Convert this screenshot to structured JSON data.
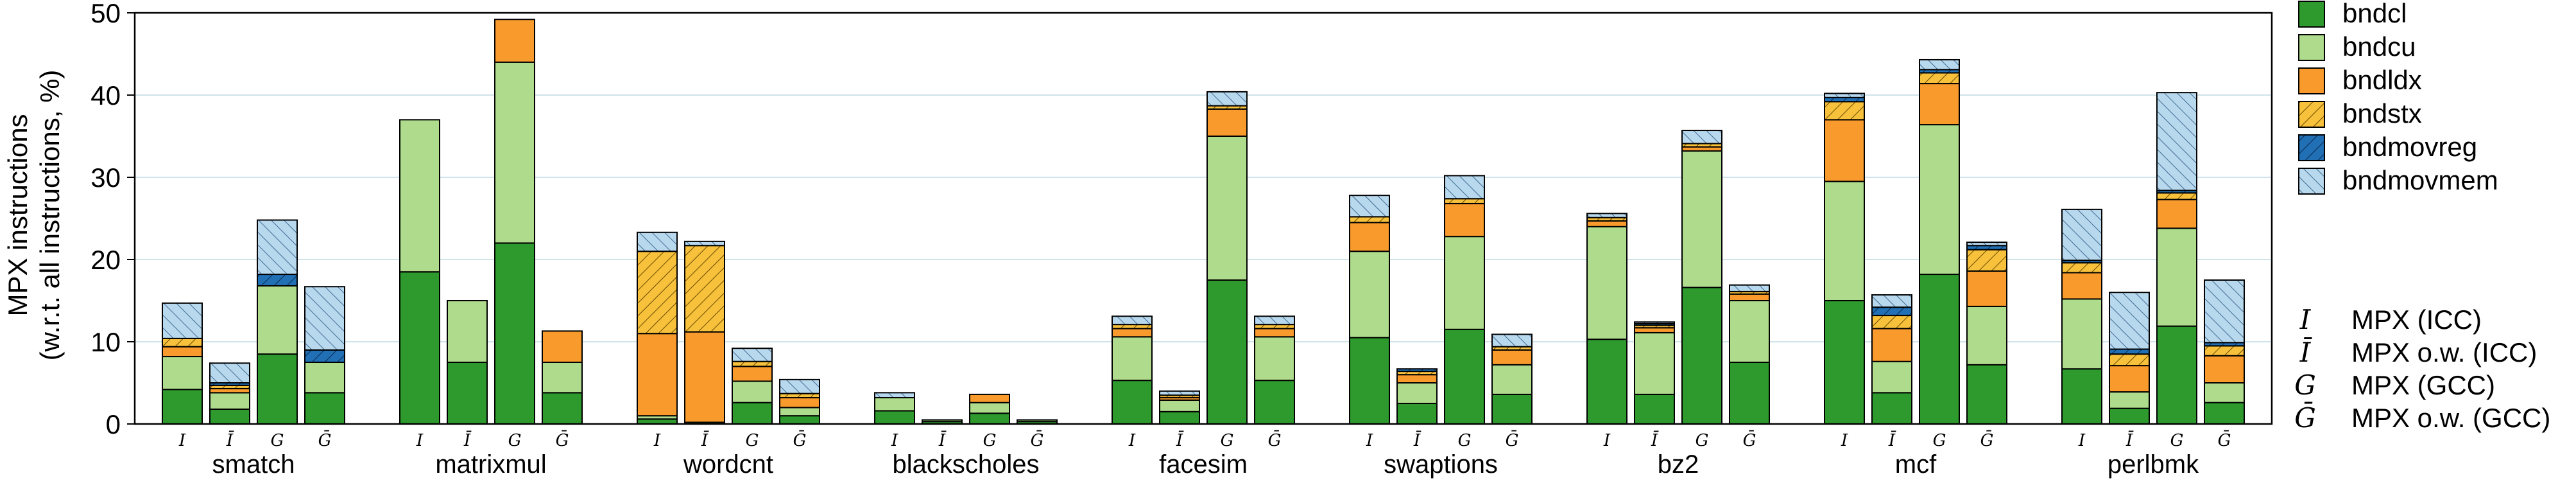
{
  "chart_data": {
    "type": "bar",
    "stacked": true,
    "ylabel_line1": "MPX instructions",
    "ylabel_line2": "(w.r.t. all instructions, %)",
    "ylim": [
      0,
      50
    ],
    "yticks": [
      "0",
      "10",
      "20",
      "30",
      "40",
      "50"
    ],
    "grid": "horizontal",
    "bar_labels": [
      "I",
      "Ī",
      "G",
      "Ḡ"
    ],
    "categories": [
      "smatch",
      "matrixmul",
      "wordcnt",
      "blackscholes",
      "facesim",
      "swaptions",
      "bz2",
      "mcf",
      "perlbmk"
    ],
    "series": [
      {
        "name": "bndcl",
        "color": "#2e9a2e",
        "pattern": "solid",
        "values": [
          [
            4.2,
            1.8,
            8.5,
            3.8
          ],
          [
            18.5,
            7.5,
            22.0,
            3.8
          ],
          [
            0.6,
            0.2,
            2.6,
            1.0
          ],
          [
            1.6,
            0.3,
            1.3,
            0.3
          ],
          [
            5.3,
            1.5,
            17.5,
            5.3
          ],
          [
            10.5,
            2.5,
            11.5,
            3.6
          ],
          [
            10.3,
            3.6,
            16.6,
            7.5
          ],
          [
            15.0,
            3.8,
            18.2,
            7.2
          ],
          [
            6.7,
            1.9,
            11.9,
            2.6
          ]
        ]
      },
      {
        "name": "bndcu",
        "color": "#aedc8c",
        "pattern": "solid",
        "values": [
          [
            4.0,
            2.0,
            8.3,
            3.7
          ],
          [
            18.5,
            7.5,
            22.0,
            3.7
          ],
          [
            0.4,
            0.0,
            2.6,
            1.0
          ],
          [
            1.6,
            0.2,
            1.3,
            0.2
          ],
          [
            5.3,
            1.4,
            17.5,
            5.3
          ],
          [
            10.5,
            2.5,
            11.3,
            3.6
          ],
          [
            13.7,
            7.5,
            16.6,
            7.5
          ],
          [
            14.5,
            3.8,
            18.2,
            7.1
          ],
          [
            8.5,
            2.0,
            11.9,
            2.4
          ]
        ]
      },
      {
        "name": "bndldx",
        "color": "#f89b2c",
        "pattern": "solid",
        "values": [
          [
            1.2,
            0.5,
            0.0,
            0.0
          ],
          [
            0.0,
            0.0,
            5.2,
            3.8
          ],
          [
            10.0,
            11.0,
            1.8,
            1.2
          ],
          [
            0.0,
            0.0,
            1.0,
            0.0
          ],
          [
            1.0,
            0.3,
            3.3,
            1.0
          ],
          [
            3.5,
            1.0,
            4.0,
            1.8
          ],
          [
            0.7,
            0.6,
            0.5,
            0.8
          ],
          [
            7.5,
            4.0,
            5.0,
            4.3
          ],
          [
            3.2,
            3.2,
            3.5,
            3.3
          ]
        ]
      },
      {
        "name": "bndstx",
        "color": "#f7c13c",
        "pattern": "hatch",
        "values": [
          [
            1.0,
            0.4,
            0.0,
            0.0
          ],
          [
            0.0,
            0.0,
            0.0,
            0.0
          ],
          [
            10.0,
            10.5,
            0.6,
            0.5
          ],
          [
            0.0,
            0.0,
            0.0,
            0.0
          ],
          [
            0.5,
            0.3,
            0.4,
            0.5
          ],
          [
            0.7,
            0.4,
            0.6,
            0.4
          ],
          [
            0.4,
            0.3,
            0.4,
            0.3
          ],
          [
            2.2,
            1.6,
            1.3,
            2.6
          ],
          [
            1.2,
            1.4,
            0.8,
            1.2
          ]
        ]
      },
      {
        "name": "bndmovreg",
        "color": "#2170b5",
        "pattern": "hatch",
        "values": [
          [
            0.0,
            0.3,
            1.4,
            1.5
          ],
          [
            0.0,
            0.0,
            0.0,
            0.0
          ],
          [
            0.0,
            0.0,
            0.0,
            0.0
          ],
          [
            0.0,
            0.0,
            0.0,
            0.0
          ],
          [
            0.0,
            0.0,
            0.0,
            0.0
          ],
          [
            0.0,
            0.3,
            0.0,
            0.0
          ],
          [
            0.0,
            0.2,
            0.0,
            0.0
          ],
          [
            0.5,
            1.0,
            0.4,
            0.5
          ],
          [
            0.3,
            0.6,
            0.3,
            0.4
          ]
        ]
      },
      {
        "name": "bndmovmem",
        "color": "#b8d8ee",
        "pattern": "hatch",
        "values": [
          [
            4.3,
            2.4,
            6.6,
            7.7
          ],
          [
            0.0,
            0.0,
            0.0,
            0.0
          ],
          [
            2.3,
            0.5,
            1.6,
            1.7
          ],
          [
            0.6,
            0.0,
            0.0,
            0.0
          ],
          [
            1.0,
            0.5,
            1.7,
            1.0
          ],
          [
            2.6,
            0.0,
            2.8,
            1.5
          ],
          [
            0.5,
            0.2,
            1.6,
            0.8
          ],
          [
            0.5,
            1.5,
            1.2,
            0.4
          ],
          [
            6.2,
            6.9,
            11.9,
            7.6
          ]
        ]
      }
    ],
    "legend_position": "right",
    "variant_legend": [
      {
        "symbol": "I",
        "label": "MPX (ICC)"
      },
      {
        "symbol": "Ī",
        "label": "MPX o.w. (ICC)"
      },
      {
        "symbol": "G",
        "label": "MPX (GCC)"
      },
      {
        "symbol": "Ḡ",
        "label": "MPX o.w. (GCC)"
      }
    ]
  }
}
